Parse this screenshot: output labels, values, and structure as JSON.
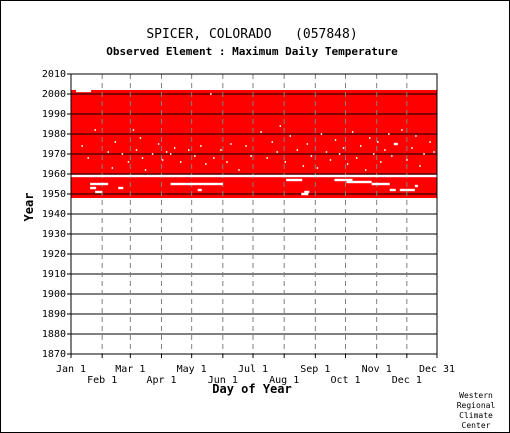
{
  "chart_data": {
    "type": "scatter",
    "title": "SPICER, COLORADO   (057848)",
    "subtitle": "Observed Element : Maximum Daily Temperature",
    "xlabel": "Day of Year",
    "ylabel": "Year",
    "ylim": [
      1870,
      2010
    ],
    "y_ticks": [
      1870,
      1880,
      1890,
      1900,
      1910,
      1920,
      1930,
      1940,
      1950,
      1960,
      1970,
      1980,
      1990,
      2000,
      2010
    ],
    "x_ticks_top": [
      {
        "label": "Jan 1",
        "day": 1
      },
      {
        "label": "Mar 1",
        "day": 60
      },
      {
        "label": "May 1",
        "day": 121
      },
      {
        "label": "Jul 1",
        "day": 182
      },
      {
        "label": "Sep 1",
        "day": 244
      },
      {
        "label": "Nov 1",
        "day": 305
      },
      {
        "label": "Dec 31",
        "day": 365
      }
    ],
    "x_ticks_bottom": [
      {
        "label": "Feb 1",
        "day": 32
      },
      {
        "label": "Apr 1",
        "day": 91
      },
      {
        "label": "Jun 1",
        "day": 152
      },
      {
        "label": "Aug 1",
        "day": 213
      },
      {
        "label": "Oct 1",
        "day": 274
      },
      {
        "label": "Dec 1",
        "day": 335
      }
    ],
    "grid": true,
    "series": [
      {
        "color": "#ff0000",
        "coverage": {
          "day_start": 1,
          "day_end": 365,
          "year_start": 1948,
          "year_end": 2002
        },
        "missing_segments": [
          {
            "year": 1959,
            "day_start": 1,
            "day_end": 365
          },
          {
            "year": 2001.5,
            "day_start": 6,
            "day_end": 21
          },
          {
            "year": 1955,
            "day_start": 20,
            "day_end": 38
          },
          {
            "year": 1953,
            "day_start": 20,
            "day_end": 26
          },
          {
            "year": 1951,
            "day_start": 25,
            "day_end": 32
          },
          {
            "year": 1953,
            "day_start": 48,
            "day_end": 53
          },
          {
            "year": 1955,
            "day_start": 100,
            "day_end": 152
          },
          {
            "year": 1952,
            "day_start": 127,
            "day_end": 131
          },
          {
            "year": 1957,
            "day_start": 215,
            "day_end": 231
          },
          {
            "year": 1950,
            "day_start": 230,
            "day_end": 237
          },
          {
            "year": 1951,
            "day_start": 233,
            "day_end": 238
          },
          {
            "year": 1957,
            "day_start": 263,
            "day_end": 281
          },
          {
            "year": 1956,
            "day_start": 275,
            "day_end": 300
          },
          {
            "year": 1955,
            "day_start": 300,
            "day_end": 318
          },
          {
            "year": 1952,
            "day_start": 318,
            "day_end": 324
          },
          {
            "year": 1952,
            "day_start": 328,
            "day_end": 343
          },
          {
            "year": 1954,
            "day_start": 343,
            "day_end": 346
          },
          {
            "year": 1975,
            "day_start": 322,
            "day_end": 326
          }
        ],
        "missing_days": [
          {
            "day": 12,
            "year": 1974
          },
          {
            "day": 18,
            "year": 1968
          },
          {
            "day": 25,
            "year": 1982
          },
          {
            "day": 38,
            "year": 1971
          },
          {
            "day": 42,
            "year": 1963
          },
          {
            "day": 45,
            "year": 1976
          },
          {
            "day": 52,
            "year": 1970
          },
          {
            "day": 58,
            "year": 1966
          },
          {
            "day": 63,
            "year": 1982
          },
          {
            "day": 66,
            "year": 1972
          },
          {
            "day": 70,
            "year": 1978
          },
          {
            "day": 72,
            "year": 1968
          },
          {
            "day": 75,
            "year": 1962
          },
          {
            "day": 82,
            "year": 1970
          },
          {
            "day": 88,
            "year": 1975
          },
          {
            "day": 92,
            "year": 1967
          },
          {
            "day": 96,
            "year": 1971
          },
          {
            "day": 100,
            "year": 1970
          },
          {
            "day": 104,
            "year": 1973
          },
          {
            "day": 110,
            "year": 1966
          },
          {
            "day": 118,
            "year": 1972
          },
          {
            "day": 124,
            "year": 1969
          },
          {
            "day": 130,
            "year": 1974
          },
          {
            "day": 135,
            "year": 1965
          },
          {
            "day": 140,
            "year": 2000
          },
          {
            "day": 143,
            "year": 1968
          },
          {
            "day": 150,
            "year": 1972
          },
          {
            "day": 156,
            "year": 1966
          },
          {
            "day": 160,
            "year": 1975
          },
          {
            "day": 168,
            "year": 1962
          },
          {
            "day": 175,
            "year": 1974
          },
          {
            "day": 180,
            "year": 1969
          },
          {
            "day": 190,
            "year": 1981
          },
          {
            "day": 196,
            "year": 1968
          },
          {
            "day": 201,
            "year": 1976
          },
          {
            "day": 206,
            "year": 1971
          },
          {
            "day": 209,
            "year": 1984
          },
          {
            "day": 214,
            "year": 1966
          },
          {
            "day": 219,
            "year": 1979
          },
          {
            "day": 226,
            "year": 1972
          },
          {
            "day": 232,
            "year": 1964
          },
          {
            "day": 236,
            "year": 1975
          },
          {
            "day": 240,
            "year": 1969
          },
          {
            "day": 246,
            "year": 1963
          },
          {
            "day": 250,
            "year": 1980
          },
          {
            "day": 255,
            "year": 1971
          },
          {
            "day": 259,
            "year": 1967
          },
          {
            "day": 264,
            "year": 1977
          },
          {
            "day": 268,
            "year": 1970
          },
          {
            "day": 272,
            "year": 1973
          },
          {
            "day": 276,
            "year": 1965
          },
          {
            "day": 281,
            "year": 1981
          },
          {
            "day": 285,
            "year": 1968
          },
          {
            "day": 289,
            "year": 1974
          },
          {
            "day": 294,
            "year": 1962
          },
          {
            "day": 298,
            "year": 1978
          },
          {
            "day": 302,
            "year": 1970
          },
          {
            "day": 306,
            "year": 1976
          },
          {
            "day": 309,
            "year": 1966
          },
          {
            "day": 313,
            "year": 1972
          },
          {
            "day": 317,
            "year": 1980
          },
          {
            "day": 320,
            "year": 1969
          },
          {
            "day": 330,
            "year": 1982
          },
          {
            "day": 335,
            "year": 1967
          },
          {
            "day": 340,
            "year": 1973
          },
          {
            "day": 344,
            "year": 1979
          },
          {
            "day": 348,
            "year": 1964
          },
          {
            "day": 352,
            "year": 1970
          },
          {
            "day": 358,
            "year": 1976
          },
          {
            "day": 362,
            "year": 1971
          }
        ]
      }
    ]
  },
  "credit": [
    "Western",
    "Regional",
    "Climate",
    "Center"
  ]
}
